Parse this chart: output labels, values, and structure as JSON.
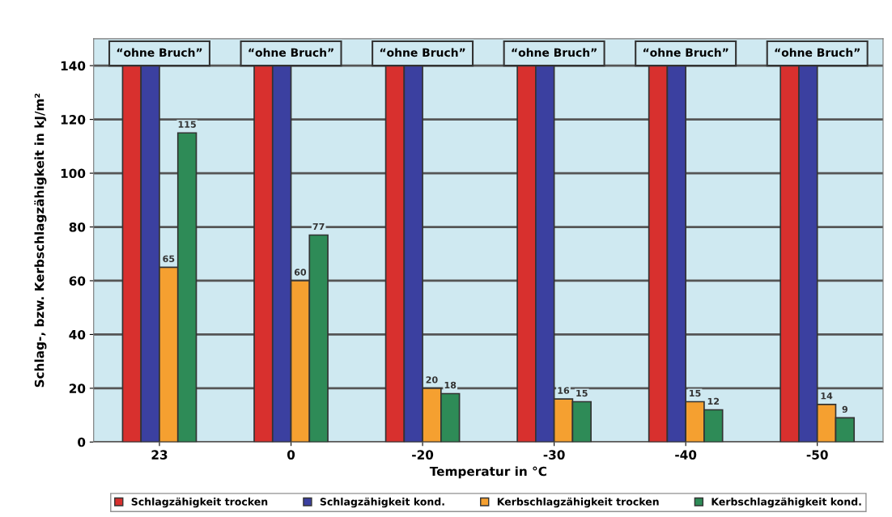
{
  "chart_data": {
    "type": "bar",
    "categories": [
      "23",
      "0",
      "-20",
      "-30",
      "-40",
      "-50"
    ],
    "xlabel": "Temperatur in °C",
    "ylabel": "Schlag-, bzw. Kerbschlagzähigkeit in kJ/m²",
    "ylim": [
      0,
      150
    ],
    "yticks": [
      0,
      20,
      40,
      60,
      80,
      100,
      120,
      140
    ],
    "grid": "y",
    "legend": "bottom",
    "series": [
      {
        "name": "Schlagzähigkeit trocken",
        "color": "#d8302e",
        "values": [
          140,
          140,
          140,
          140,
          140,
          140
        ]
      },
      {
        "name": "Schlagzähigkeit kond.",
        "color": "#3b40a0",
        "values": [
          140,
          140,
          140,
          140,
          140,
          140
        ]
      },
      {
        "name": "Kerbschlagzähigkeit trocken",
        "color": "#f5a030",
        "values": [
          65,
          60,
          20,
          16,
          15,
          14
        ],
        "value_labels": [
          "65",
          "60",
          "20",
          "16",
          "15",
          "14"
        ]
      },
      {
        "name": "Kerbschlagzähigkeit kond.",
        "color": "#2e8b57",
        "values": [
          115,
          77,
          18,
          15,
          12,
          9
        ],
        "value_labels": [
          "115",
          "77",
          "18",
          "15",
          "12",
          "9"
        ]
      }
    ],
    "annotations": [
      {
        "text": "“ohne Bruch”",
        "x": "23",
        "y": 140
      },
      {
        "text": "“ohne Bruch”",
        "x": "0",
        "y": 140
      },
      {
        "text": "“ohne Bruch”",
        "x": "-20",
        "y": 140
      },
      {
        "text": "“ohne Bruch”",
        "x": "-30",
        "y": 140
      },
      {
        "text": "“ohne Bruch”",
        "x": "-40",
        "y": 140
      },
      {
        "text": "“ohne Bruch”",
        "x": "-50",
        "y": 140
      }
    ]
  }
}
